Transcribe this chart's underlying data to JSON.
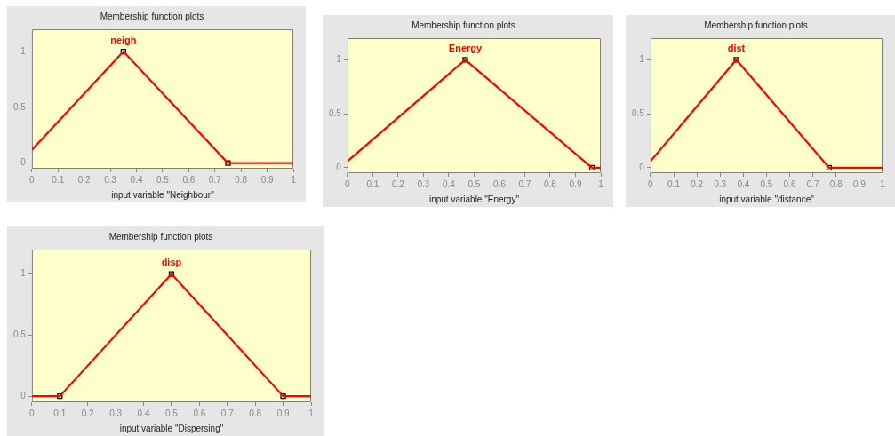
{
  "chart_data": [
    {
      "type": "line",
      "title": "Membership function plots",
      "xlabel": "input variable \"Neighbour\"",
      "xlim": [
        0,
        1
      ],
      "xticks": [
        0,
        0.1,
        0.2,
        0.3,
        0.4,
        0.5,
        0.6,
        0.7,
        0.8,
        0.9,
        1
      ],
      "ylim": [
        -0.05,
        1.2
      ],
      "yticks": [
        0,
        0.5,
        1
      ],
      "grid": false,
      "legend": false,
      "annotations": [
        {
          "text": "neigh",
          "x": 0.35,
          "y": 1
        }
      ],
      "series": [
        {
          "color": "#ff0000",
          "marker": "none",
          "x": [
            0,
            0.35,
            0.75,
            1
          ],
          "values": [
            0.12,
            1,
            0,
            0
          ]
        },
        {
          "type": "scatter",
          "color": "#000000",
          "marker": "square",
          "x": [
            0.35,
            0.75
          ],
          "values": [
            1,
            0
          ]
        }
      ]
    },
    {
      "type": "line",
      "title": "Membership function plots",
      "xlabel": "input variable \"Energy\"",
      "xlim": [
        0,
        1
      ],
      "xticks": [
        0,
        0.1,
        0.2,
        0.3,
        0.4,
        0.5,
        0.6,
        0.7,
        0.8,
        0.9,
        1
      ],
      "ylim": [
        -0.05,
        1.2
      ],
      "yticks": [
        0,
        0.5,
        1
      ],
      "grid": false,
      "legend": false,
      "annotations": [
        {
          "text": "Energy",
          "x": 0.465,
          "y": 1
        }
      ],
      "series": [
        {
          "color": "#ff0000",
          "marker": "none",
          "x": [
            0,
            0.465,
            0.965,
            1
          ],
          "values": [
            0.06,
            1,
            0,
            0
          ]
        },
        {
          "type": "scatter",
          "color": "#000000",
          "marker": "square",
          "x": [
            0.465,
            0.965
          ],
          "values": [
            1,
            0
          ]
        }
      ]
    },
    {
      "type": "line",
      "title": "Membership function plots",
      "xlabel": "input variable \"distance\"",
      "xlim": [
        0,
        1
      ],
      "xticks": [
        0,
        0.1,
        0.2,
        0.3,
        0.4,
        0.5,
        0.6,
        0.7,
        0.8,
        0.9,
        1
      ],
      "ylim": [
        -0.05,
        1.2
      ],
      "yticks": [
        0,
        0.5,
        1
      ],
      "grid": false,
      "legend": false,
      "annotations": [
        {
          "text": "dist",
          "x": 0.37,
          "y": 1
        }
      ],
      "series": [
        {
          "color": "#ff0000",
          "marker": "none",
          "x": [
            0,
            0.37,
            0.77,
            1
          ],
          "values": [
            0.06,
            1,
            0,
            0
          ]
        },
        {
          "type": "scatter",
          "color": "#000000",
          "marker": "square",
          "x": [
            0.37,
            0.77
          ],
          "values": [
            1,
            0
          ]
        }
      ]
    },
    {
      "type": "line",
      "title": "Membership function plots",
      "xlabel": "input variable \"Dispersing\"",
      "xlim": [
        0,
        1
      ],
      "xticks": [
        0,
        0.1,
        0.2,
        0.3,
        0.4,
        0.5,
        0.6,
        0.7,
        0.8,
        0.9,
        1
      ],
      "ylim": [
        -0.05,
        1.2
      ],
      "yticks": [
        0,
        0.5,
        1
      ],
      "grid": false,
      "legend": false,
      "annotations": [
        {
          "text": "disp",
          "x": 0.5,
          "y": 1
        }
      ],
      "series": [
        {
          "color": "#ff0000",
          "marker": "none",
          "x": [
            0,
            0.1,
            0.5,
            0.9,
            1
          ],
          "values": [
            0,
            0,
            1,
            0,
            0
          ]
        },
        {
          "type": "scatter",
          "color": "#000000",
          "marker": "square",
          "x": [
            0.1,
            0.5,
            0.9
          ],
          "values": [
            0,
            1,
            0
          ]
        }
      ]
    }
  ]
}
